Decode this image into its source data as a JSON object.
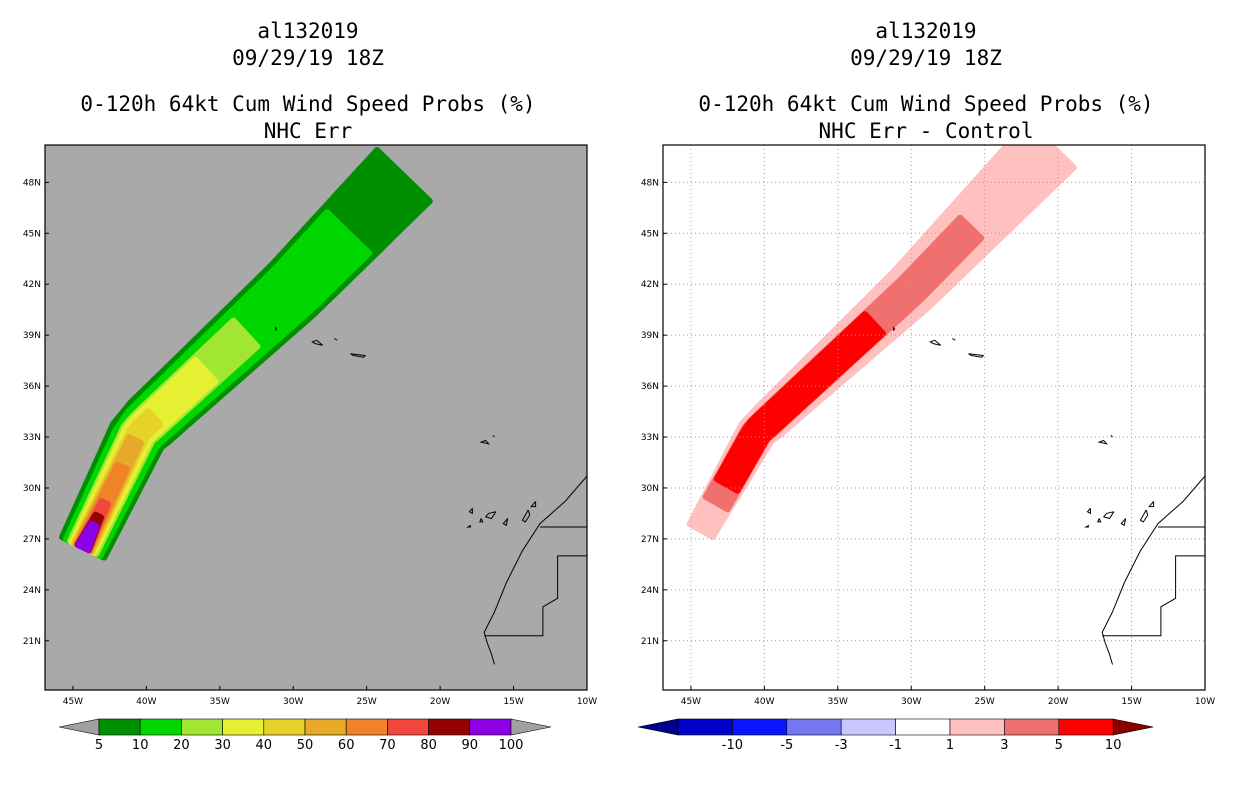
{
  "left_panel": {
    "title_lines": [
      "al132019",
      "09/29/19 18Z",
      "0-120h 64kt Cum Wind Speed Probs (%)",
      "NHC Err"
    ],
    "colorbar": {
      "colors": [
        "#008f00",
        "#00d600",
        "#a0e632",
        "#e6f032",
        "#e6d228",
        "#e6aa28",
        "#f08228",
        "#f0463c",
        "#960000",
        "#8c00e6"
      ],
      "labels": [
        "5",
        "10",
        "20",
        "30",
        "40",
        "50",
        "60",
        "70",
        "80",
        "90",
        "100"
      ],
      "end_color": "#a0a0a0"
    }
  },
  "right_panel": {
    "title_lines": [
      "al132019",
      "09/29/19 18Z",
      "0-120h 64kt Cum Wind Speed Probs (%)",
      "NHC Err - Control"
    ],
    "colorbar": {
      "colors": [
        "#0000c8",
        "#0a14ff",
        "#7478f0",
        "#c8c8ff",
        "#ffffff",
        "#ffc0c0",
        "#f07070",
        "#ff0000"
      ],
      "labels": [
        "-10",
        "-5",
        "-3",
        "-1",
        "1",
        "3",
        "5",
        "10"
      ],
      "low_end_color": "#00008c",
      "high_end_color": "#8c0000"
    }
  },
  "chart_data": [
    {
      "type": "contour-map",
      "title": "0-120h 64kt Cum Wind Speed Probs (%) — NHC Err",
      "storm": "al132019",
      "time": "09/29/19 18Z",
      "x_ticks": [
        "45W",
        "40W",
        "35W",
        "30W",
        "25W",
        "20W",
        "15W",
        "10W"
      ],
      "y_ticks": [
        "48N",
        "45N",
        "42N",
        "39N",
        "36N",
        "33N",
        "30N",
        "27N",
        "24N",
        "21N"
      ],
      "xlim": [
        -46.9,
        -10
      ],
      "ylim": [
        18.1,
        50.2
      ],
      "background": "#a9a9a9",
      "track": [
        [
          -44.3,
          26.5
        ],
        [
          -40.5,
          33.3
        ],
        [
          -35.0,
          37.7
        ],
        [
          -30.0,
          41.7
        ],
        [
          -22.5,
          48.4
        ]
      ],
      "levels": [
        {
          "min": 5,
          "color": "#008f00",
          "extent": [
            0.0,
            1.0
          ],
          "halfwidth": [
            1.6,
            2.5
          ]
        },
        {
          "min": 10,
          "color": "#00d600",
          "extent": [
            0.0,
            0.84
          ],
          "halfwidth": [
            1.3,
            2.0
          ]
        },
        {
          "min": 20,
          "color": "#a0e632",
          "extent": [
            0.0,
            0.55
          ],
          "halfwidth": [
            1.0,
            1.2
          ]
        },
        {
          "min": 30,
          "color": "#e6f032",
          "extent": [
            0.0,
            0.44
          ],
          "halfwidth": [
            0.85,
            1.0
          ]
        },
        {
          "min": 40,
          "color": "#e6d228",
          "extent": [
            0.0,
            0.3
          ],
          "halfwidth": [
            0.7,
            0.6
          ]
        },
        {
          "min": 50,
          "color": "#e6aa28",
          "extent": [
            0.0,
            0.24
          ],
          "halfwidth": [
            0.6,
            0.45
          ]
        },
        {
          "min": 60,
          "color": "#f08228",
          "extent": [
            0.0,
            0.18
          ],
          "halfwidth": [
            0.5,
            0.35
          ]
        },
        {
          "min": 70,
          "color": "#f0463c",
          "extent": [
            0.0,
            0.1
          ],
          "halfwidth": [
            0.45,
            0.25
          ]
        },
        {
          "min": 80,
          "color": "#960000",
          "extent": [
            0.0,
            0.07
          ],
          "halfwidth": [
            0.42,
            0.2
          ]
        },
        {
          "min": 90,
          "color": "#8c00e6",
          "extent": [
            0.0,
            0.05
          ],
          "halfwidth": [
            0.38,
            0.2
          ]
        }
      ]
    },
    {
      "type": "contour-map",
      "title": "0-120h 64kt Cum Wind Speed Probs (%) — NHC Err - Control",
      "storm": "al132019",
      "time": "09/29/19 18Z",
      "x_ticks": [
        "45W",
        "40W",
        "35W",
        "30W",
        "25W",
        "20W",
        "15W",
        "10W"
      ],
      "y_ticks": [
        "48N",
        "45N",
        "42N",
        "39N",
        "36N",
        "33N",
        "30N",
        "27N",
        "24N",
        "21N"
      ],
      "xlim": [
        -46.9,
        -10
      ],
      "ylim": [
        18.1,
        50.2
      ],
      "background": "#ffffff",
      "gridlines": true,
      "track": [
        [
          -44.3,
          27.5
        ],
        [
          -40.5,
          33.3
        ],
        [
          -35.0,
          37.7
        ],
        [
          -30.0,
          41.7
        ],
        [
          -20.5,
          50.2
        ]
      ],
      "levels": [
        {
          "min": 1,
          "color": "#ffc0c0",
          "extent": [
            0.0,
            1.0
          ],
          "halfwidth": [
            0.9,
            2.2
          ]
        },
        {
          "min": 3,
          "color": "#f07070",
          "extent": [
            0.06,
            0.78
          ],
          "halfwidth": [
            0.85,
            1.0
          ]
        },
        {
          "min": 5,
          "color": "#ff0000",
          "extent": [
            0.1,
            0.52
          ],
          "halfwidth": [
            0.8,
            0.9
          ]
        }
      ]
    }
  ]
}
